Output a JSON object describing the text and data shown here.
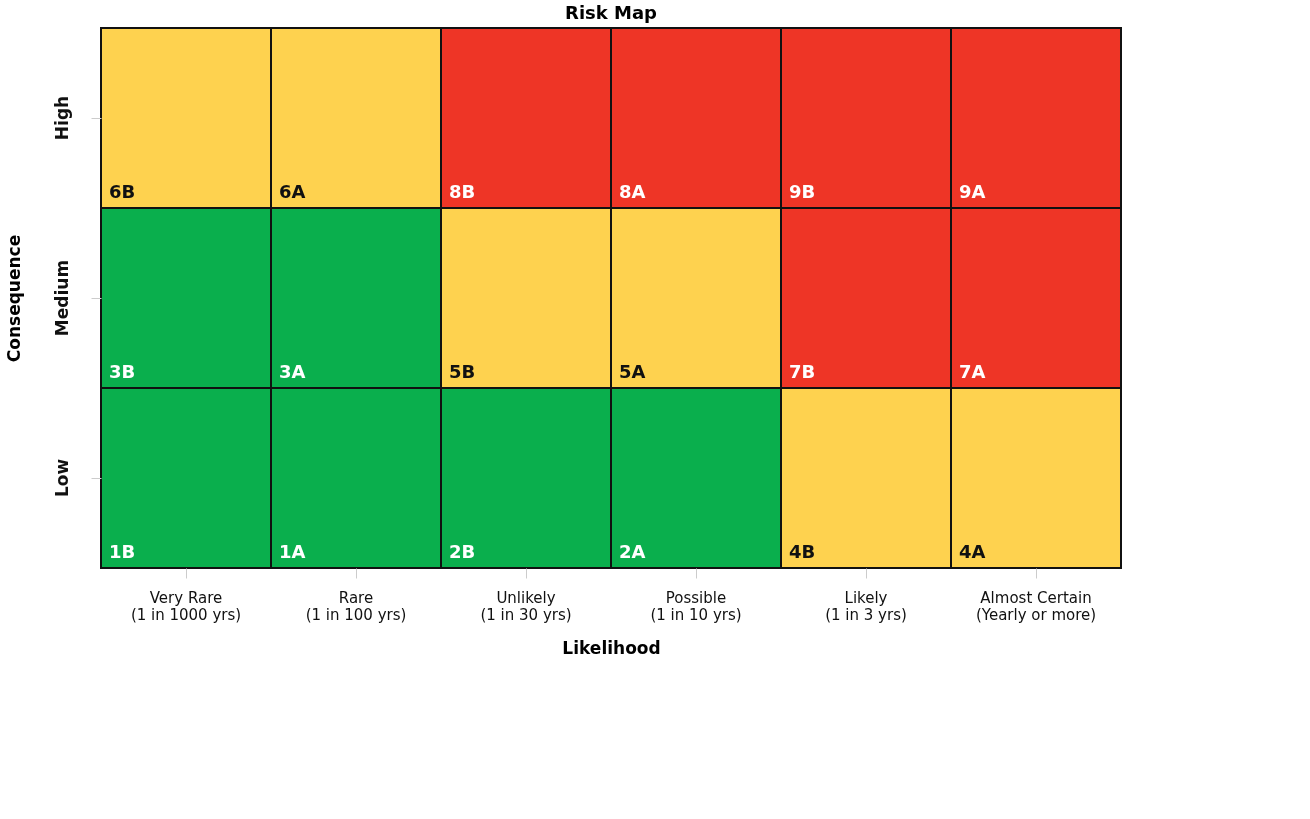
{
  "chart_data": {
    "type": "heatmap",
    "title": "Risk Map",
    "xlabel": "Likelihood",
    "ylabel": "Consequence",
    "categories": [
      "Very Rare\n(1 in 1000 yrs)",
      "Rare\n(1 in 100 yrs)",
      "Unlikely\n(1 in 30 yrs)",
      "Possible\n(1 in 10 yrs)",
      "Likely\n(1 in 3 yrs)",
      "Almost Certain\n(Yearly or more)"
    ],
    "y_categories": [
      "High",
      "Medium",
      "Low"
    ],
    "cells": [
      [
        6,
        6,
        8,
        8,
        9,
        9
      ],
      [
        3,
        3,
        5,
        5,
        7,
        7
      ],
      [
        1,
        1,
        2,
        2,
        4,
        4
      ]
    ],
    "cell_labels": [
      [
        "6B",
        "6A",
        "8B",
        "8A",
        "9B",
        "9A"
      ],
      [
        "3B",
        "3A",
        "5B",
        "5A",
        "7B",
        "7A"
      ],
      [
        "1B",
        "1A",
        "2B",
        "2A",
        "4B",
        "4A"
      ]
    ],
    "colors": [
      [
        "#fed24f",
        "#fed24f",
        "#ee3526",
        "#ee3526",
        "#ee3526",
        "#ee3526"
      ],
      [
        "#0aaf4d",
        "#0aaf4d",
        "#fed24f",
        "#fed24f",
        "#ee3526",
        "#ee3526"
      ],
      [
        "#0aaf4d",
        "#0aaf4d",
        "#0aaf4d",
        "#0aaf4d",
        "#fed24f",
        "#fed24f"
      ]
    ]
  }
}
